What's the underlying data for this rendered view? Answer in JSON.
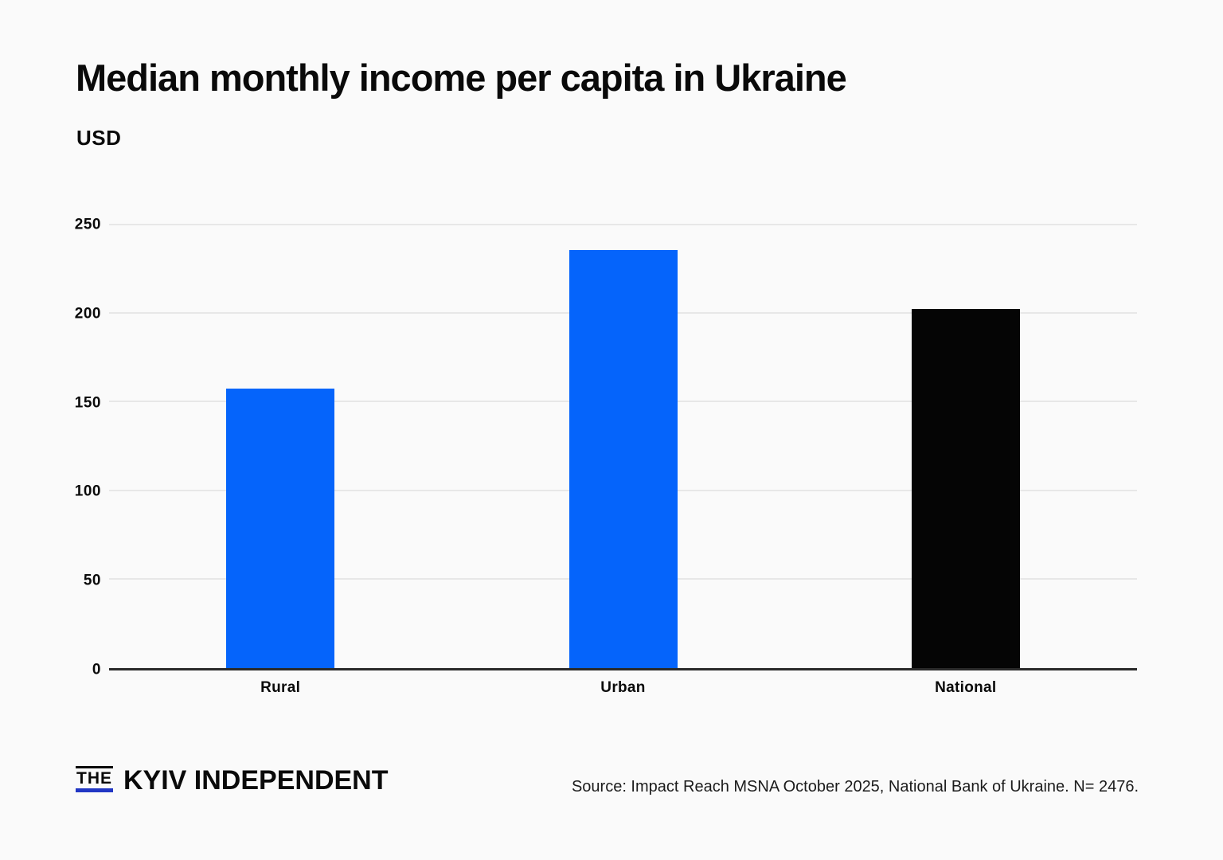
{
  "page": {
    "background": "#fafafa"
  },
  "header": {
    "title": "Median monthly income per capita in Ukraine",
    "subtitle": "USD"
  },
  "chart_data": {
    "type": "bar",
    "categories": [
      "Rural",
      "Urban",
      "National"
    ],
    "values": [
      158,
      236,
      203
    ],
    "bar_colors": [
      "#0564fb",
      "#0564fb",
      "#050505"
    ],
    "title": "Median monthly income per capita in Ukraine",
    "xlabel": "",
    "ylabel": "USD",
    "ylim": [
      0,
      250
    ],
    "yticks": [
      0,
      50,
      100,
      150,
      200,
      250
    ],
    "grid": true,
    "legend": "none",
    "gridline_color": "#e7e7e7",
    "axis_color": "#2a2a2a",
    "accent_blue": "#0564fb"
  },
  "footer": {
    "logo": {
      "the": "THE",
      "name": "KYIV INDEPENDENT",
      "underline_color": "#2136c4"
    },
    "source": "Source: Impact Reach MSNA October 2025, National Bank of Ukraine. N= 2476."
  }
}
